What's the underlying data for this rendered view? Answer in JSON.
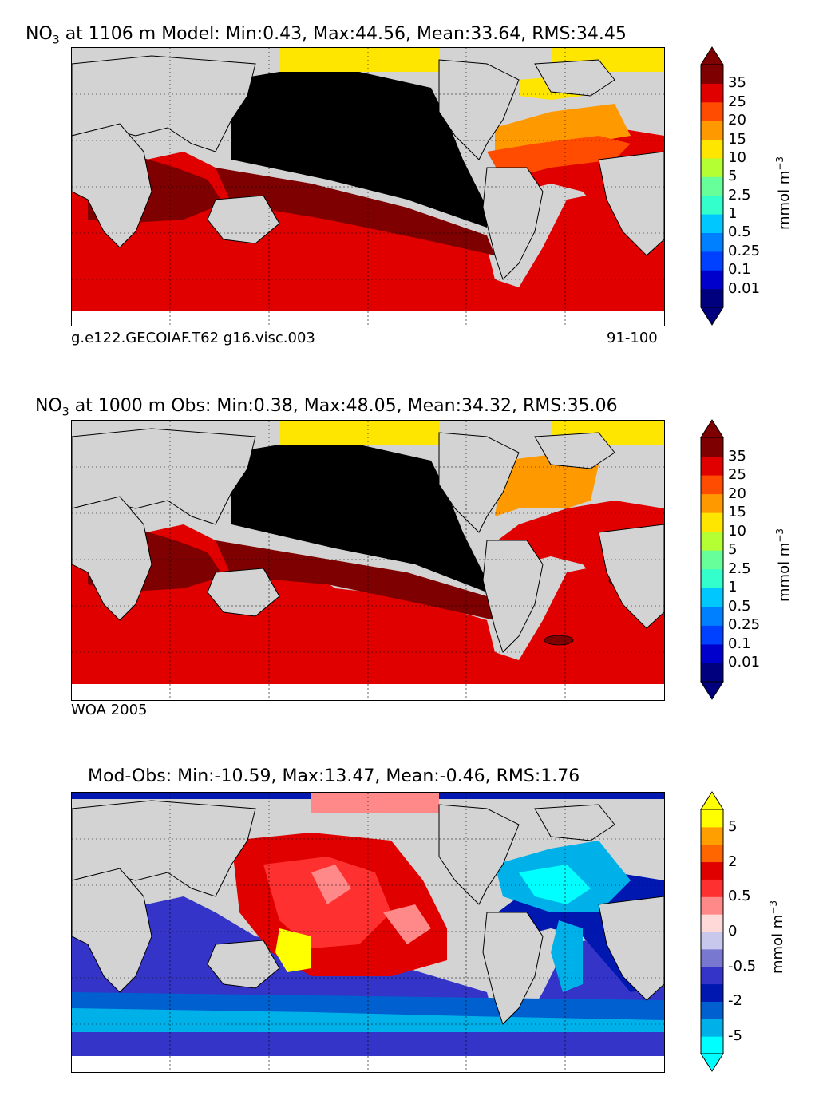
{
  "panels": [
    {
      "title_prefix": "NO",
      "title_sub": "3",
      "title_rest": " at 1106 m Model: Min:0.43, Max:44.56, Mean:33.64, RMS:34.45",
      "caption_left": "g.e122.GECOIAF.T62 g16.visc.003",
      "caption_right": "91-100",
      "unit": "mmol m",
      "unit_exp": "−3",
      "levels": [
        "0.01",
        "0.1",
        "0.25",
        "0.5",
        "1",
        "2.5",
        "5",
        "10",
        "15",
        "20",
        "25",
        "35"
      ],
      "colors": [
        "#00007f",
        "#0000cd",
        "#0040ff",
        "#0080ff",
        "#00c8ff",
        "#33ffcc",
        "#66ff99",
        "#b3ff33",
        "#ffe600",
        "#ff9900",
        "#ff4c00",
        "#e00000",
        "#7f0000"
      ]
    },
    {
      "title_prefix": "NO",
      "title_sub": "3",
      "title_rest": " at 1000 m Obs: Min:0.38, Max:48.05, Mean:34.32, RMS:35.06",
      "caption_left": "WOA 2005",
      "caption_right": "",
      "unit": "mmol m",
      "unit_exp": "−3",
      "levels": [
        "0.01",
        "0.1",
        "0.25",
        "0.5",
        "1",
        "2.5",
        "5",
        "10",
        "15",
        "20",
        "25",
        "35"
      ],
      "colors": [
        "#00007f",
        "#0000cd",
        "#0040ff",
        "#0080ff",
        "#00c8ff",
        "#33ffcc",
        "#66ff99",
        "#b3ff33",
        "#ffe600",
        "#ff9900",
        "#ff4c00",
        "#e00000",
        "#7f0000"
      ]
    },
    {
      "title_prefix": "Mod-Obs: Min:-10.59, Max:13.47, Mean:-0.46, RMS:1.76",
      "title_sub": "",
      "title_rest": "",
      "caption_left": "",
      "caption_right": "",
      "unit": "mmol m",
      "unit_exp": "−3",
      "levels": [
        "-5",
        "",
        "-2",
        "",
        "-0.5",
        "",
        "0",
        "",
        "0.5",
        "",
        "2",
        "",
        "5"
      ],
      "colors": [
        "#00ffff",
        "#00b0e8",
        "#0060d0",
        "#0018b0",
        "#3434c8",
        "#7878d0",
        "#c8c8ec",
        "#ffd8d8",
        "#ff8888",
        "#ff3030",
        "#e00000",
        "#ff6600",
        "#ffa000",
        "#ffff00"
      ]
    }
  ]
}
